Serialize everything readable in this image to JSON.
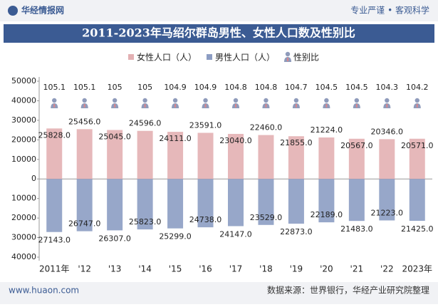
{
  "header": {
    "brand": "华经情报网",
    "slogan": "专业严谨 • 客观科学"
  },
  "footer": {
    "site": "www.huaon.com",
    "source": "数据来源：世界银行，华经产业研究院整理"
  },
  "chart_data": {
    "type": "bar",
    "title": "2011-2023年马绍尔群岛男性、女性人口数及性别比",
    "categories": [
      "2011年",
      "'12",
      "'13",
      "'14",
      "'15",
      "'16",
      "'17",
      "'18",
      "'19",
      "'20",
      "'21",
      "'22",
      "2023年"
    ],
    "series": [
      {
        "name": "女性人口（人）",
        "color": "#e3b0b3",
        "values": [
          25828,
          25456,
          25045,
          24596,
          24111,
          23591,
          23040,
          22460,
          21855,
          21224,
          20567,
          20346,
          20571
        ],
        "value_labels": [
          "25828.0",
          "25456.0",
          "25045.0",
          "24596.0",
          "24111.0",
          "23591.0",
          "23040.0",
          "22460.0",
          "21855.0",
          "21224.0",
          "20567.0",
          "20346.0",
          "20571.0"
        ]
      },
      {
        "name": "男性人口（人）",
        "color": "#8c9dc3",
        "values": [
          -27143,
          -26747,
          -26307,
          -25823,
          -25299,
          -24738,
          -24147,
          -23529,
          -22873,
          -22189,
          -21483,
          -21223,
          -21425
        ],
        "value_labels": [
          "27143.0",
          "26747.0",
          "26307.0",
          "25823.0",
          "25299.0",
          "24738.0",
          "24147.0",
          "23529.0",
          "22873.0",
          "22189.0",
          "21483.0",
          "21223.0",
          "21425.0"
        ]
      },
      {
        "name": "性别比",
        "color": "#8f9bbb",
        "values": [
          105.1,
          105.1,
          105,
          105,
          104.9,
          104.9,
          104.8,
          104.8,
          104.7,
          104.5,
          104.5,
          104.3,
          104.2
        ]
      }
    ],
    "ylim": [
      -40000,
      50000
    ],
    "yticks": [
      50000,
      40000,
      30000,
      20000,
      10000,
      0,
      {
        "value": -10000,
        "label": "10000"
      },
      {
        "value": -20000,
        "label": "20000"
      },
      {
        "value": -30000,
        "label": "30000"
      },
      {
        "value": -40000,
        "label": "40000"
      }
    ]
  }
}
